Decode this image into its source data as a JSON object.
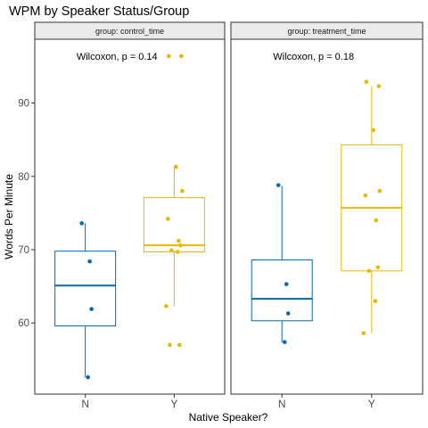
{
  "chart_data": {
    "type": "box",
    "title": "WPM by Speaker Status/Group",
    "xlabel": "Native Speaker?",
    "ylabel": "Words Per Minute",
    "categories": [
      "N",
      "Y"
    ],
    "yticks": [
      60,
      70,
      80,
      90
    ],
    "ylim": [
      50.3,
      98.7
    ],
    "grid": false,
    "colors": {
      "N": "#0868ac",
      "Y": "#e7b800"
    },
    "panels": [
      {
        "label": "group: control_time",
        "annotation": "Wilcoxon, p = 0.14",
        "boxes": [
          {
            "category": "N",
            "min": 52.6,
            "q1": 59.6,
            "median": 65.1,
            "q3": 69.8,
            "max": 73.6
          },
          {
            "category": "Y",
            "min": 62.3,
            "q1": 69.7,
            "median": 70.6,
            "q3": 77.1,
            "max": 81.3
          }
        ],
        "points": [
          {
            "category": "N",
            "y": 73.6
          },
          {
            "category": "N",
            "y": 68.4
          },
          {
            "category": "N",
            "y": 61.9
          },
          {
            "category": "N",
            "y": 52.6
          },
          {
            "category": "Y",
            "y": 96.4
          },
          {
            "category": "Y",
            "y": 96.4
          },
          {
            "category": "Y",
            "y": 81.3
          },
          {
            "category": "Y",
            "y": 78.0
          },
          {
            "category": "Y",
            "y": 74.2
          },
          {
            "category": "Y",
            "y": 71.2
          },
          {
            "category": "Y",
            "y": 70.6
          },
          {
            "category": "Y",
            "y": 69.9
          },
          {
            "category": "Y",
            "y": 69.7
          },
          {
            "category": "Y",
            "y": 62.3
          },
          {
            "category": "Y",
            "y": 57.0
          },
          {
            "category": "Y",
            "y": 57.0
          }
        ]
      },
      {
        "label": "group: treatment_time",
        "annotation": "Wilcoxon, p = 0.18",
        "boxes": [
          {
            "category": "N",
            "min": 57.4,
            "q1": 60.3,
            "median": 63.3,
            "q3": 68.6,
            "max": 78.7
          },
          {
            "category": "Y",
            "min": 58.6,
            "q1": 67.1,
            "median": 75.7,
            "q3": 84.3,
            "max": 92.3
          }
        ],
        "points": [
          {
            "category": "N",
            "y": 78.8
          },
          {
            "category": "N",
            "y": 65.3
          },
          {
            "category": "N",
            "y": 61.3
          },
          {
            "category": "N",
            "y": 57.4
          },
          {
            "category": "Y",
            "y": 92.9
          },
          {
            "category": "Y",
            "y": 92.3
          },
          {
            "category": "Y",
            "y": 86.3
          },
          {
            "category": "Y",
            "y": 78.0
          },
          {
            "category": "Y",
            "y": 77.4
          },
          {
            "category": "Y",
            "y": 74.0
          },
          {
            "category": "Y",
            "y": 67.6
          },
          {
            "category": "Y",
            "y": 67.1
          },
          {
            "category": "Y",
            "y": 63.0
          },
          {
            "category": "Y",
            "y": 58.6
          }
        ]
      }
    ]
  }
}
